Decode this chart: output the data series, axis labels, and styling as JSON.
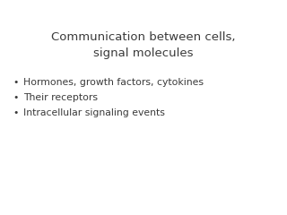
{
  "title_line1": "Communication between cells,",
  "title_line2": "signal molecules",
  "bullet_points": [
    "Hormones, growth factors, cytokines",
    "Their receptors",
    "Intracellular signaling events"
  ],
  "background_color": "#ffffff",
  "text_color": "#3a3a3a",
  "title_fontsize": 9.5,
  "bullet_fontsize": 7.8,
  "bullet_symbol": "•"
}
